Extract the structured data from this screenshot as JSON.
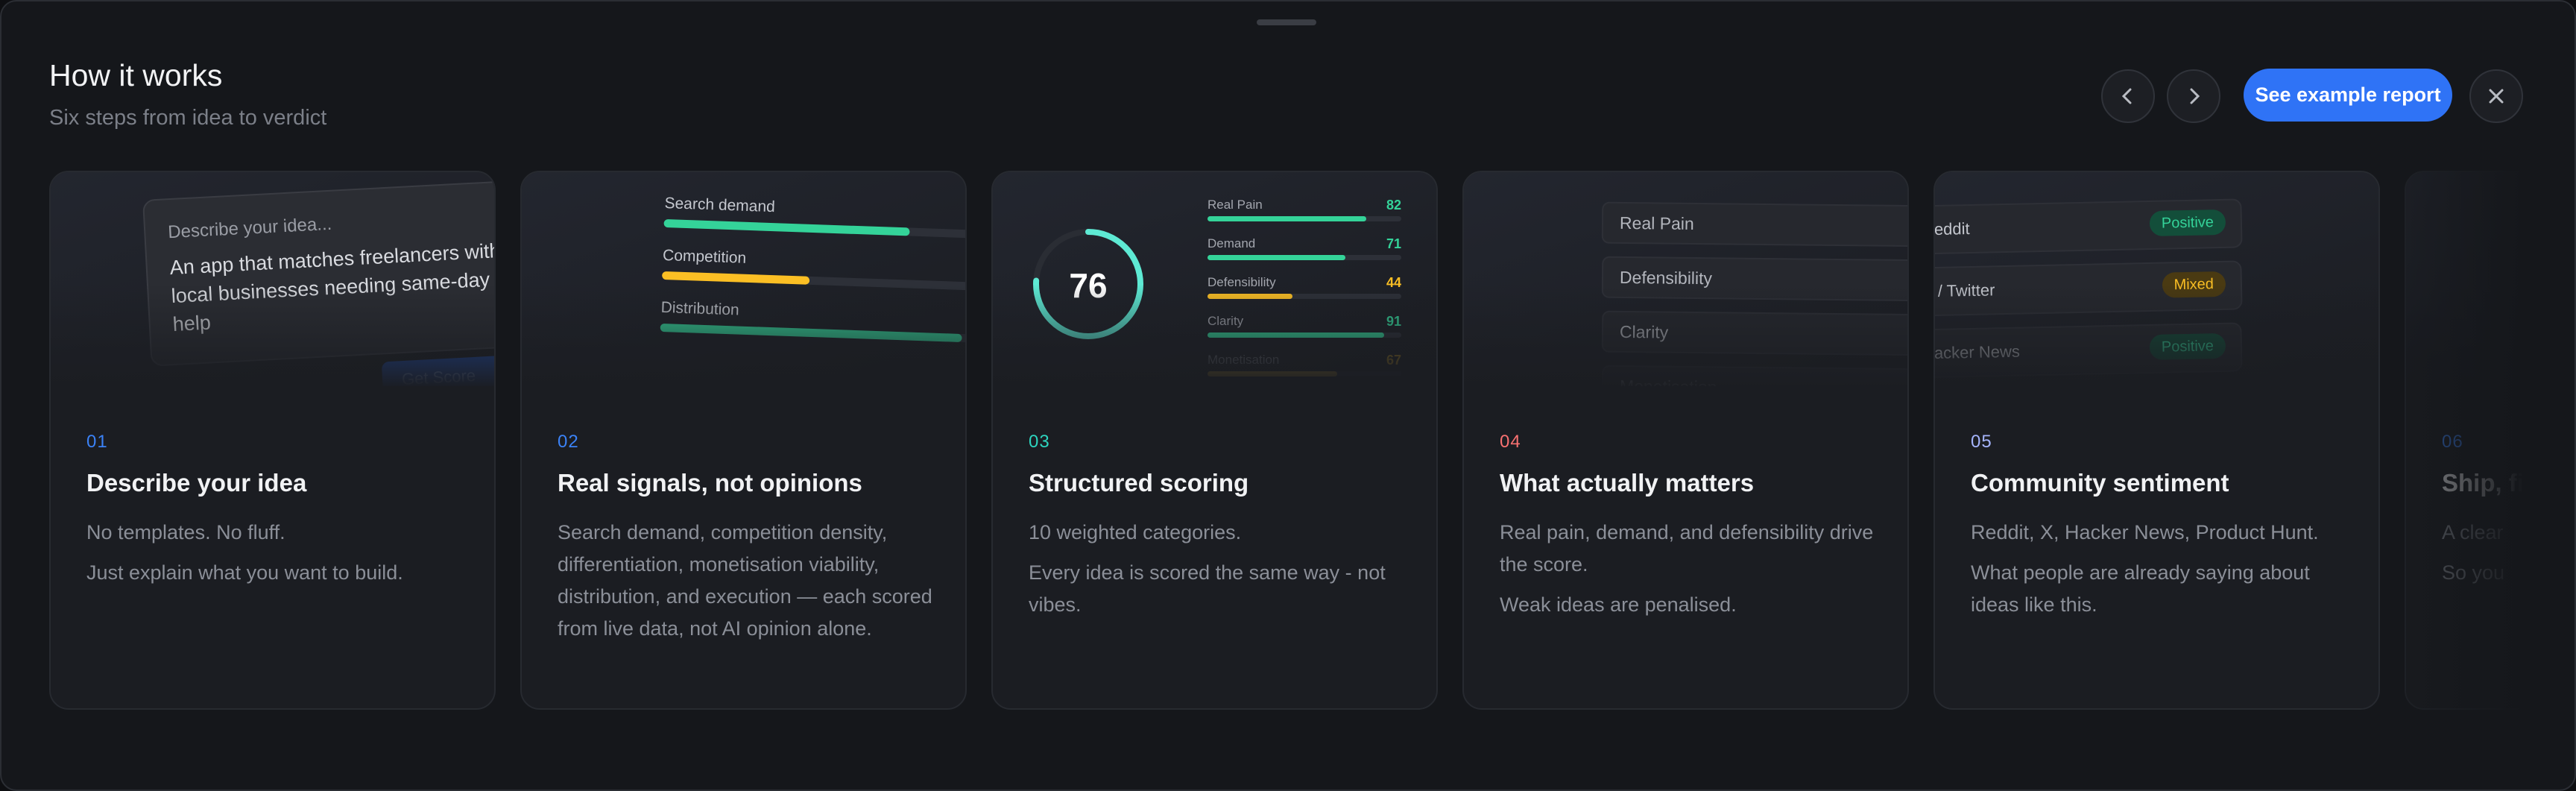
{
  "header": {
    "title": "How it works",
    "subtitle": "Six steps from idea to verdict"
  },
  "actions": {
    "cta": "See example report"
  },
  "cards": [
    {
      "number": "01",
      "color": "#3b82f6",
      "title": "Describe your idea",
      "paragraphs": [
        "No templates. No fluff.",
        "Just explain what you want to build."
      ],
      "preview": {
        "label": "Describe your idea...",
        "text": "An app that matches freelancers with local businesses needing same-day help",
        "button": "Get Score"
      }
    },
    {
      "number": "02",
      "color": "#3b82f6",
      "title": "Real signals, not opinions",
      "paragraphs": [
        "Search demand, competition density, differentiation, monetisation viability, distribution, and execution — each scored from live data, not AI opinion alone."
      ],
      "preview": {
        "bars": [
          {
            "label": "Search demand",
            "value": 75,
            "color": "#34d399"
          },
          {
            "label": "Competition",
            "value": 45,
            "color": "#fbbf24"
          },
          {
            "label": "Distribution",
            "value": 92,
            "color": "#34d399"
          }
        ]
      }
    },
    {
      "number": "03",
      "color": "#2dd4bf",
      "title": "Structured scoring",
      "paragraphs": [
        "10 weighted categories.",
        "Every idea is scored the same way - not vibes."
      ],
      "preview": {
        "score": 76,
        "rows": [
          {
            "label": "Real Pain",
            "value": 82,
            "color": "#34d399"
          },
          {
            "label": "Demand",
            "value": 71,
            "color": "#34d399"
          },
          {
            "label": "Defensibility",
            "value": 44,
            "color": "#fbbf24"
          },
          {
            "label": "Clarity",
            "value": 91,
            "color": "#34d399"
          },
          {
            "label": "Monetisation",
            "value": 67,
            "color": "#fbbf24"
          }
        ]
      }
    },
    {
      "number": "04",
      "color": "#f87171",
      "title": "What actually matters",
      "paragraphs": [
        "Real pain, demand, and defensibility drive the score.",
        "Weak ideas are penalised."
      ],
      "preview": {
        "items": [
          "Real Pain",
          "Defensibility",
          "Clarity",
          "Monetisation"
        ]
      }
    },
    {
      "number": "05",
      "color": "#a5b4fc",
      "title": "Community sentiment",
      "paragraphs": [
        "Reddit, X, Hacker News, Product Hunt.",
        "What people are already saying about ideas like this."
      ],
      "preview": {
        "sources": [
          {
            "name": "Reddit",
            "sentiment": "Positive"
          },
          {
            "name": "X / Twitter",
            "sentiment": "Mixed"
          },
          {
            "name": "Hacker News",
            "sentiment": "Positive"
          }
        ]
      }
    },
    {
      "number": "06",
      "color": "#3b82f6",
      "title": "Ship, fi",
      "paragraphs": [
        "A clear",
        "So you"
      ]
    }
  ]
}
